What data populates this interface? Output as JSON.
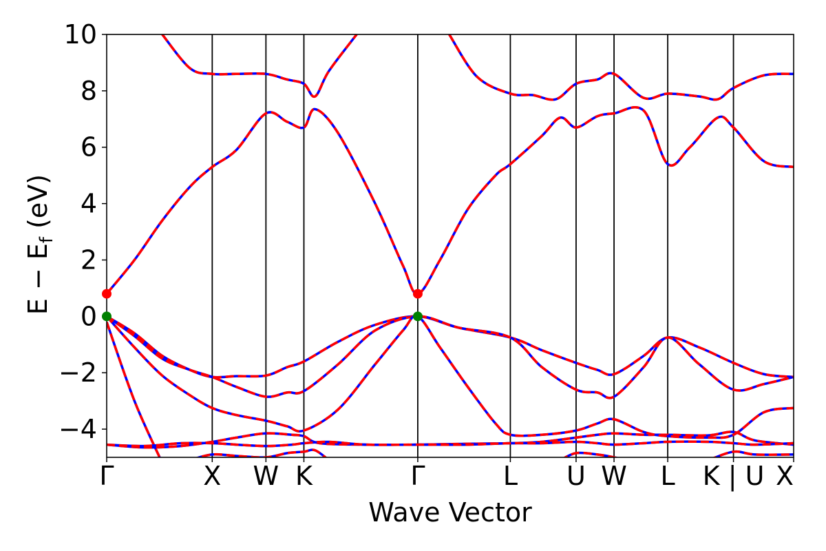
{
  "chart_data": {
    "type": "line",
    "xlabel": "Wave Vector",
    "ylabel": "E − E_f (eV)",
    "ylabel_main": "E − E",
    "ylabel_sub": "f",
    "ylabel_tail": " (eV)",
    "xlim": [
      0,
      7.42
    ],
    "ylim": [
      -5,
      10
    ],
    "yticks": [
      {
        "value": -4,
        "label": "−4"
      },
      {
        "value": -2,
        "label": "−2"
      },
      {
        "value": 0,
        "label": "0"
      },
      {
        "value": 2,
        "label": "2"
      },
      {
        "value": 4,
        "label": "4"
      },
      {
        "value": 6,
        "label": "6"
      },
      {
        "value": 8,
        "label": "8"
      },
      {
        "value": 10,
        "label": "10"
      }
    ],
    "kpoints": [
      {
        "label": "Γ",
        "x": 0.0
      },
      {
        "label": "X",
        "x": 1.14
      },
      {
        "label": "W",
        "x": 1.72
      },
      {
        "label": "K",
        "x": 2.13
      },
      {
        "label": "Γ",
        "x": 3.36
      },
      {
        "label": "L",
        "x": 4.36
      },
      {
        "label": "U",
        "x": 5.07
      },
      {
        "label": "W",
        "x": 5.48
      },
      {
        "label": "L",
        "x": 6.06
      },
      {
        "label": "K | U",
        "x": 6.77
      },
      {
        "label": "X",
        "x": 7.42
      }
    ],
    "colors": {
      "line": "#ff0000",
      "dash": "#0000ff",
      "cbm": "#ff0000",
      "vbm": "#008000",
      "vline": "#000000"
    },
    "markers": [
      {
        "name": "cbm",
        "points": [
          [
            0.0,
            0.8
          ],
          [
            3.36,
            0.8
          ]
        ]
      },
      {
        "name": "vbm",
        "points": [
          [
            0.0,
            0.0
          ],
          [
            3.36,
            0.0
          ]
        ]
      }
    ],
    "bands": [
      [
        [
          0,
          -0.2
        ],
        [
          0.3,
          -3.0
        ],
        [
          0.6,
          -5.2
        ]
      ],
      [
        [
          0,
          -4.55
        ],
        [
          0.4,
          -4.65
        ],
        [
          0.8,
          -4.6
        ],
        [
          1.14,
          -4.45
        ],
        [
          1.4,
          -4.3
        ],
        [
          1.72,
          -4.15
        ],
        [
          2.0,
          -4.2
        ],
        [
          2.13,
          -4.25
        ],
        [
          2.3,
          -4.5
        ],
        [
          2.8,
          -4.55
        ],
        [
          3.36,
          -4.55
        ],
        [
          3.9,
          -4.52
        ],
        [
          4.36,
          -4.5
        ],
        [
          4.7,
          -4.45
        ],
        [
          5.07,
          -4.3
        ],
        [
          5.3,
          -4.2
        ],
        [
          5.48,
          -4.15
        ],
        [
          5.8,
          -4.2
        ],
        [
          6.06,
          -4.2
        ],
        [
          6.5,
          -4.22
        ],
        [
          6.77,
          -4.1
        ],
        [
          7.0,
          -4.4
        ],
        [
          7.42,
          -4.55
        ]
      ],
      [
        [
          0,
          -4.55
        ],
        [
          0.4,
          -4.6
        ],
        [
          0.8,
          -4.5
        ],
        [
          1.14,
          -4.5
        ],
        [
          1.4,
          -4.55
        ],
        [
          1.72,
          -4.6
        ],
        [
          2.0,
          -4.55
        ],
        [
          2.13,
          -4.5
        ],
        [
          2.4,
          -4.45
        ],
        [
          2.8,
          -4.55
        ],
        [
          3.36,
          -4.55
        ],
        [
          3.9,
          -4.55
        ],
        [
          4.36,
          -4.5
        ],
        [
          4.7,
          -4.5
        ],
        [
          5.07,
          -4.45
        ],
        [
          5.3,
          -4.5
        ],
        [
          5.48,
          -4.55
        ],
        [
          5.8,
          -4.5
        ],
        [
          6.06,
          -4.45
        ],
        [
          6.5,
          -4.45
        ],
        [
          6.77,
          -4.5
        ],
        [
          7.0,
          -4.55
        ],
        [
          7.42,
          -4.5
        ]
      ],
      [
        [
          0,
          0
        ],
        [
          0.3,
          -0.6
        ],
        [
          0.6,
          -1.4
        ],
        [
          0.9,
          -1.9
        ],
        [
          1.14,
          -2.15
        ],
        [
          1.4,
          -2.12
        ],
        [
          1.72,
          -2.1
        ],
        [
          1.95,
          -1.8
        ],
        [
          2.13,
          -1.6
        ],
        [
          2.5,
          -0.9
        ],
        [
          2.9,
          -0.3
        ],
        [
          3.36,
          0
        ],
        [
          3.8,
          -0.4
        ],
        [
          4.36,
          -0.75
        ],
        [
          4.7,
          -1.2
        ],
        [
          5.07,
          -1.65
        ],
        [
          5.3,
          -1.9
        ],
        [
          5.48,
          -2.05
        ],
        [
          5.8,
          -1.4
        ],
        [
          6.06,
          -0.75
        ],
        [
          6.4,
          -1.1
        ],
        [
          6.77,
          -1.65
        ],
        [
          7.1,
          -2.05
        ],
        [
          7.42,
          -2.15
        ]
      ],
      [
        [
          0,
          0
        ],
        [
          0.3,
          -0.7
        ],
        [
          0.6,
          -1.5
        ],
        [
          0.9,
          -1.9
        ],
        [
          1.14,
          -2.15
        ],
        [
          1.4,
          -2.5
        ],
        [
          1.72,
          -2.85
        ],
        [
          1.95,
          -2.7
        ],
        [
          2.13,
          -2.65
        ],
        [
          2.5,
          -1.7
        ],
        [
          2.9,
          -0.5
        ],
        [
          3.36,
          0
        ],
        [
          3.8,
          -0.4
        ],
        [
          4.36,
          -0.75
        ],
        [
          4.7,
          -1.8
        ],
        [
          5.07,
          -2.6
        ],
        [
          5.3,
          -2.7
        ],
        [
          5.48,
          -2.85
        ],
        [
          5.8,
          -1.8
        ],
        [
          6.06,
          -0.75
        ],
        [
          6.4,
          -1.7
        ],
        [
          6.77,
          -2.6
        ],
        [
          7.1,
          -2.4
        ],
        [
          7.42,
          -2.15
        ]
      ],
      [
        [
          0,
          0
        ],
        [
          0.3,
          -1.1
        ],
        [
          0.6,
          -2.1
        ],
        [
          0.9,
          -2.8
        ],
        [
          1.14,
          -3.25
        ],
        [
          1.4,
          -3.5
        ],
        [
          1.72,
          -3.7
        ],
        [
          1.95,
          -3.9
        ],
        [
          2.13,
          -4.05
        ],
        [
          2.5,
          -3.3
        ],
        [
          2.9,
          -1.7
        ],
        [
          3.2,
          -0.5
        ],
        [
          3.36,
          0
        ],
        [
          3.6,
          -1.1
        ],
        [
          3.9,
          -2.5
        ],
        [
          4.2,
          -3.8
        ],
        [
          4.36,
          -4.2
        ],
        [
          4.7,
          -4.2
        ],
        [
          5.07,
          -4.05
        ],
        [
          5.3,
          -3.8
        ],
        [
          5.48,
          -3.65
        ],
        [
          5.8,
          -4.1
        ],
        [
          6.06,
          -4.25
        ],
        [
          6.5,
          -4.3
        ],
        [
          6.77,
          -4.2
        ],
        [
          7.1,
          -3.4
        ],
        [
          7.42,
          -3.25
        ]
      ],
      [
        [
          0,
          0.8
        ],
        [
          0.3,
          2.0
        ],
        [
          0.6,
          3.4
        ],
        [
          0.9,
          4.6
        ],
        [
          1.14,
          5.3
        ],
        [
          1.4,
          5.9
        ],
        [
          1.72,
          7.2
        ],
        [
          1.95,
          6.9
        ],
        [
          2.13,
          6.7
        ],
        [
          2.25,
          7.35
        ],
        [
          2.5,
          6.5
        ],
        [
          2.9,
          4.0
        ],
        [
          3.2,
          1.8
        ],
        [
          3.36,
          0.8
        ],
        [
          3.6,
          2.0
        ],
        [
          3.9,
          3.8
        ],
        [
          4.2,
          5.0
        ],
        [
          4.36,
          5.4
        ],
        [
          4.7,
          6.4
        ],
        [
          4.9,
          7.05
        ],
        [
          5.07,
          6.7
        ],
        [
          5.3,
          7.1
        ],
        [
          5.48,
          7.2
        ],
        [
          5.8,
          7.3
        ],
        [
          6.06,
          5.4
        ],
        [
          6.3,
          6.0
        ],
        [
          6.6,
          7.05
        ],
        [
          6.77,
          6.7
        ],
        [
          7.1,
          5.5
        ],
        [
          7.42,
          5.3
        ]
      ],
      [
        [
          0.6,
          10.0
        ],
        [
          0.9,
          8.8
        ],
        [
          1.14,
          8.6
        ],
        [
          1.4,
          8.6
        ],
        [
          1.72,
          8.6
        ],
        [
          1.95,
          8.4
        ],
        [
          2.13,
          8.25
        ],
        [
          2.25,
          7.8
        ],
        [
          2.4,
          8.7
        ],
        [
          2.7,
          10.0
        ]
      ],
      [
        [
          3.7,
          10.0
        ],
        [
          4.0,
          8.5
        ],
        [
          4.36,
          7.9
        ],
        [
          4.6,
          7.85
        ],
        [
          4.85,
          7.7
        ],
        [
          5.07,
          8.25
        ],
        [
          5.3,
          8.4
        ],
        [
          5.48,
          8.6
        ],
        [
          5.8,
          7.75
        ],
        [
          6.06,
          7.9
        ],
        [
          6.4,
          7.8
        ],
        [
          6.6,
          7.7
        ],
        [
          6.77,
          8.1
        ],
        [
          7.1,
          8.55
        ],
        [
          7.42,
          8.6
        ]
      ],
      [
        [
          0.9,
          -5.1
        ],
        [
          1.14,
          -4.9
        ],
        [
          1.4,
          -4.95
        ],
        [
          1.72,
          -5.0
        ],
        [
          1.95,
          -4.85
        ],
        [
          2.13,
          -4.8
        ],
        [
          2.25,
          -4.75
        ],
        [
          2.4,
          -5.1
        ]
      ],
      [
        [
          4.9,
          -5.1
        ],
        [
          5.07,
          -4.85
        ],
        [
          5.3,
          -4.9
        ],
        [
          5.48,
          -5.0
        ],
        [
          5.6,
          -5.1
        ]
      ],
      [
        [
          6.5,
          -5.1
        ],
        [
          6.77,
          -4.8
        ],
        [
          7.0,
          -4.9
        ],
        [
          7.42,
          -4.9
        ]
      ]
    ]
  }
}
